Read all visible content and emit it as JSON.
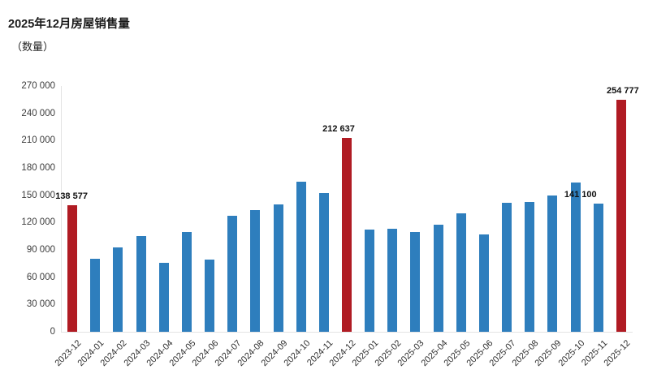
{
  "chart": {
    "title": "2025年12月房屋销售量",
    "subtitle": "（数量）"
  },
  "chart_data": {
    "type": "bar",
    "title": "2025年12月房屋销售量",
    "ylabel": "（数量）",
    "categories": [
      "2023-12",
      "2024-01",
      "2024-02",
      "2024-03",
      "2024-04",
      "2024-05",
      "2024-06",
      "2024-07",
      "2024-08",
      "2024-09",
      "2024-10",
      "2024-11",
      "2024-12",
      "2025-01",
      "2025-02",
      "2025-03",
      "2025-04",
      "2025-05",
      "2025-06",
      "2025-07",
      "2025-08",
      "2025-09",
      "2025-10",
      "2025-11",
      "2025-12"
    ],
    "values": [
      138577,
      80000,
      93000,
      105000,
      76000,
      110000,
      79000,
      127000,
      134000,
      140000,
      165000,
      152000,
      212637,
      112000,
      113000,
      110000,
      118000,
      130000,
      107000,
      142000,
      143000,
      150000,
      164000,
      141100,
      254777
    ],
    "data_labels": {
      "0": "138 577",
      "12": "212 637",
      "23": "141 100",
      "24": "254 777"
    },
    "highlight_indices": [
      0,
      12,
      24
    ],
    "colors": {
      "default_bar": "#2e7ebd",
      "highlight_bar": "#b01b23"
    },
    "ylim": [
      0,
      270000
    ],
    "ytick_labels": [
      "0",
      "30 000",
      "60 000",
      "90 000",
      "120 000",
      "150 000",
      "180 000",
      "210 000",
      "240 000",
      "270 000"
    ],
    "grid": false,
    "legend": false,
    "xtick_rotation_deg": -45
  }
}
